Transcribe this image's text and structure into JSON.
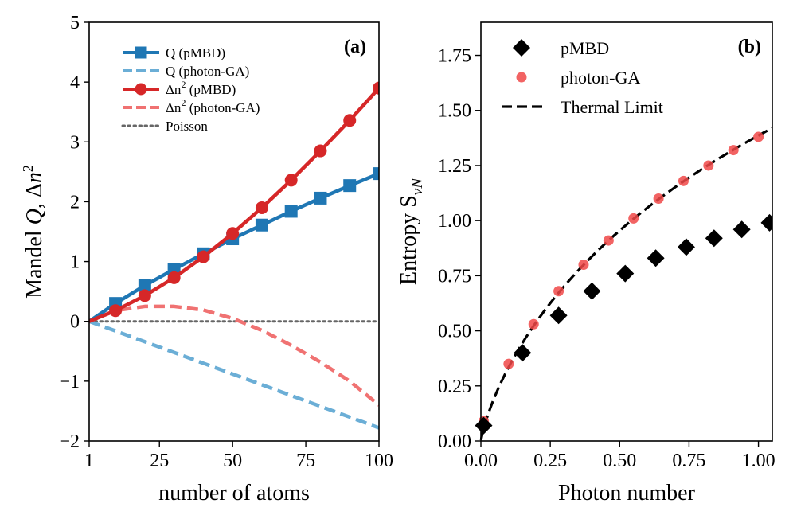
{
  "chart_data": [
    {
      "type": "line",
      "panel_tag": "(a)",
      "xlabel": "number of atoms",
      "ylabel": "Mandel Q, Δn²",
      "xlim": [
        1,
        100
      ],
      "ylim": [
        -2,
        5
      ],
      "xticks": [
        1,
        25,
        50,
        75,
        100
      ],
      "xtick_labels": [
        "1",
        "25",
        "50",
        "75",
        "100"
      ],
      "yticks": [
        -2,
        -1,
        0,
        1,
        2,
        3,
        4,
        5
      ],
      "ytick_labels": [
        "−2",
        "−1",
        "0",
        "1",
        "2",
        "3",
        "4",
        "5"
      ],
      "legend_position": "top-left",
      "series": [
        {
          "name": "Q (pMBD)",
          "label_main": "Q (pMBD)",
          "label_sup": "",
          "label_tail": "",
          "color": "#1f77b4",
          "style": "solid",
          "marker": "square",
          "x": [
            1,
            10,
            20,
            30,
            40,
            50,
            60,
            70,
            80,
            90,
            100
          ],
          "y": [
            0.0,
            0.3,
            0.6,
            0.87,
            1.13,
            1.38,
            1.61,
            1.84,
            2.06,
            2.27,
            2.47
          ]
        },
        {
          "name": "Q (photon-GA)",
          "label_main": "Q (photon-GA)",
          "label_sup": "",
          "label_tail": "",
          "color": "#6baed6",
          "style": "dashed",
          "marker": "none",
          "x": [
            1,
            10,
            20,
            30,
            40,
            50,
            60,
            70,
            80,
            90,
            100
          ],
          "y": [
            0.0,
            -0.16,
            -0.34,
            -0.52,
            -0.7,
            -0.88,
            -1.06,
            -1.24,
            -1.42,
            -1.6,
            -1.78
          ]
        },
        {
          "name": "Δn² (pMBD)",
          "label_main": "Δn",
          "label_sup": "2",
          "label_tail": " (pMBD)",
          "color": "#d62728",
          "style": "solid",
          "marker": "circle",
          "x": [
            1,
            10,
            20,
            30,
            40,
            50,
            60,
            70,
            80,
            90,
            100
          ],
          "y": [
            0.0,
            0.18,
            0.43,
            0.73,
            1.08,
            1.47,
            1.9,
            2.36,
            2.85,
            3.36,
            3.9
          ]
        },
        {
          "name": "Δn² (photon-GA)",
          "label_main": "Δn",
          "label_sup": "2",
          "label_tail": " (photon-GA)",
          "color": "#f07272",
          "style": "dashed",
          "marker": "none",
          "x": [
            1,
            10,
            20,
            30,
            40,
            50,
            60,
            70,
            80,
            90,
            100
          ],
          "y": [
            0.0,
            0.18,
            0.25,
            0.25,
            0.19,
            0.05,
            -0.15,
            -0.4,
            -0.68,
            -1.0,
            -1.4
          ]
        },
        {
          "name": "Poisson",
          "label_main": "Poisson",
          "label_sup": "",
          "label_tail": "",
          "color": "#666666",
          "style": "dotted",
          "marker": "none",
          "x": [
            1,
            100
          ],
          "y": [
            0.0,
            0.0
          ]
        }
      ]
    },
    {
      "type": "scatter",
      "panel_tag": "(b)",
      "xlabel": "Photon number",
      "ylabel": "Entropy S_vN",
      "ylabel_main": "Entropy S",
      "ylabel_sub": "vN",
      "xlim": [
        0,
        1.05
      ],
      "ylim": [
        0,
        1.9
      ],
      "xticks": [
        0,
        0.25,
        0.5,
        0.75,
        1.0
      ],
      "xtick_labels": [
        "0.00",
        "0.25",
        "0.50",
        "0.75",
        "1.00"
      ],
      "yticks": [
        0,
        0.25,
        0.5,
        0.75,
        1.0,
        1.25,
        1.5,
        1.75
      ],
      "ytick_labels": [
        "0.00",
        "0.25",
        "0.50",
        "0.75",
        "1.00",
        "1.25",
        "1.50",
        "1.75"
      ],
      "legend_position": "top-left",
      "series": [
        {
          "name": "pMBD",
          "color": "#000000",
          "marker": "diamond",
          "x": [
            0.01,
            0.15,
            0.28,
            0.4,
            0.52,
            0.63,
            0.74,
            0.84,
            0.94,
            1.04
          ],
          "y": [
            0.07,
            0.4,
            0.57,
            0.68,
            0.76,
            0.83,
            0.88,
            0.92,
            0.96,
            0.99
          ]
        },
        {
          "name": "photon-GA",
          "color": "#f04848",
          "marker": "circle",
          "x": [
            0.01,
            0.1,
            0.19,
            0.28,
            0.37,
            0.46,
            0.55,
            0.64,
            0.73,
            0.82,
            0.91,
            1.0
          ],
          "y": [
            0.09,
            0.35,
            0.53,
            0.68,
            0.8,
            0.91,
            1.01,
            1.1,
            1.18,
            1.25,
            1.32,
            1.38
          ]
        },
        {
          "name": "Thermal Limit",
          "color": "#000000",
          "marker": "none",
          "style": "dashed",
          "function": "(n+1)ln(n+1) - n ln(n)"
        }
      ]
    }
  ]
}
